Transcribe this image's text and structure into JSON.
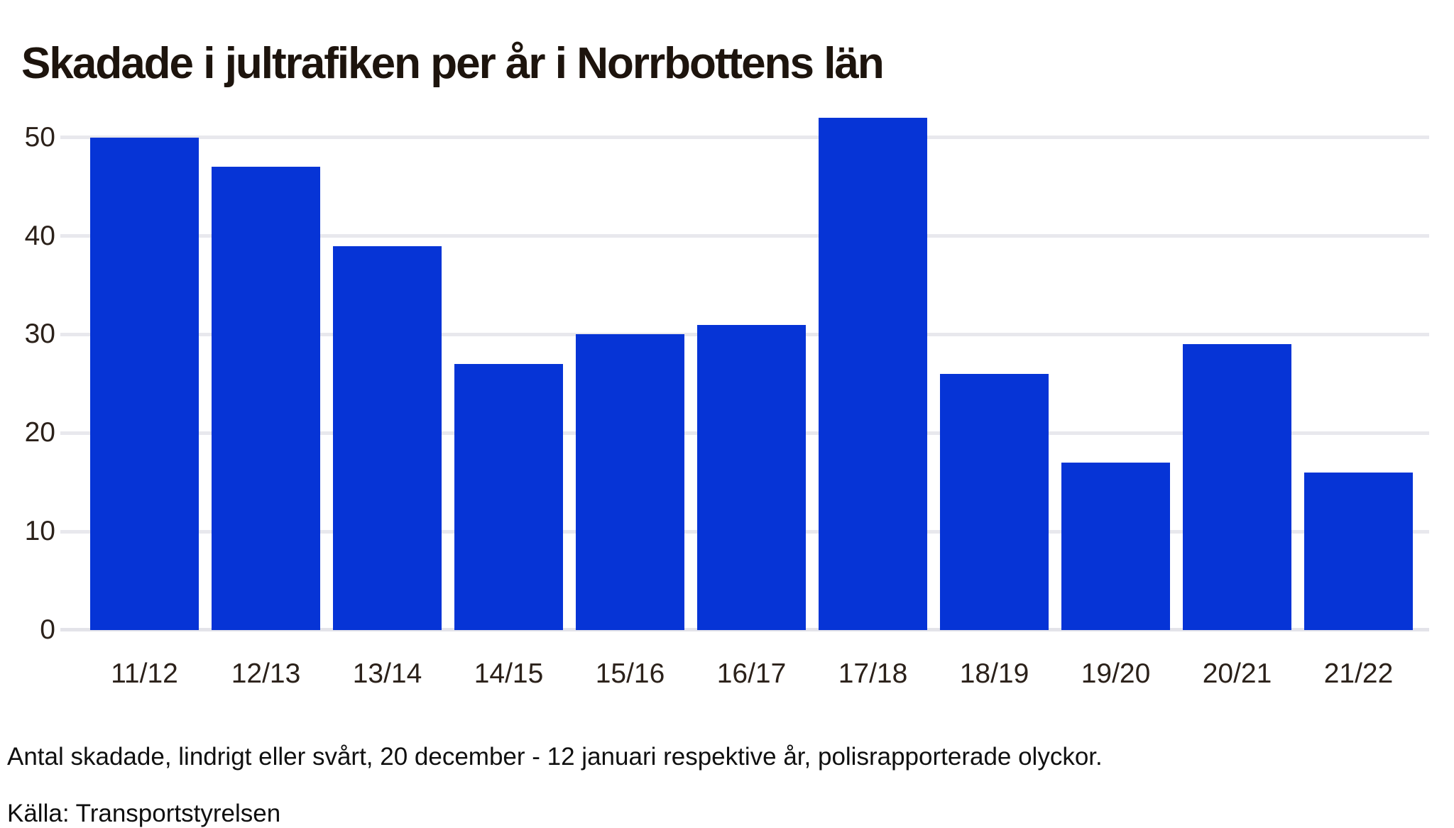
{
  "chart_data": {
    "type": "bar",
    "title": "Skadade i jultrafiken per år i Norrbottens län",
    "categories": [
      "11/12",
      "12/13",
      "13/14",
      "14/15",
      "15/16",
      "16/17",
      "17/18",
      "18/19",
      "19/20",
      "20/21",
      "21/22"
    ],
    "values": [
      50,
      47,
      39,
      27,
      30,
      31,
      52,
      26,
      17,
      29,
      16
    ],
    "series_name": "Antal skadade",
    "xlabel": "",
    "ylabel": "",
    "yticks": [
      0,
      10,
      20,
      30,
      40,
      50
    ],
    "ylim": [
      0,
      52
    ],
    "grid": "horizontal",
    "legend_position": "none",
    "caption": "Antal skadade, lindrigt eller svårt, 20 december - 12 januari respektive år, polisrapporterade olyckor.",
    "source": "Källa: Transportstyrelsen",
    "colors": {
      "bar": "#0634d6",
      "gridline": "#e8e8ed",
      "baseline": "#e3e3e9",
      "title_text": "#1d140d",
      "tick_text": "#2b211a",
      "caption_text": "#101010",
      "background": "#ffffff"
    }
  }
}
